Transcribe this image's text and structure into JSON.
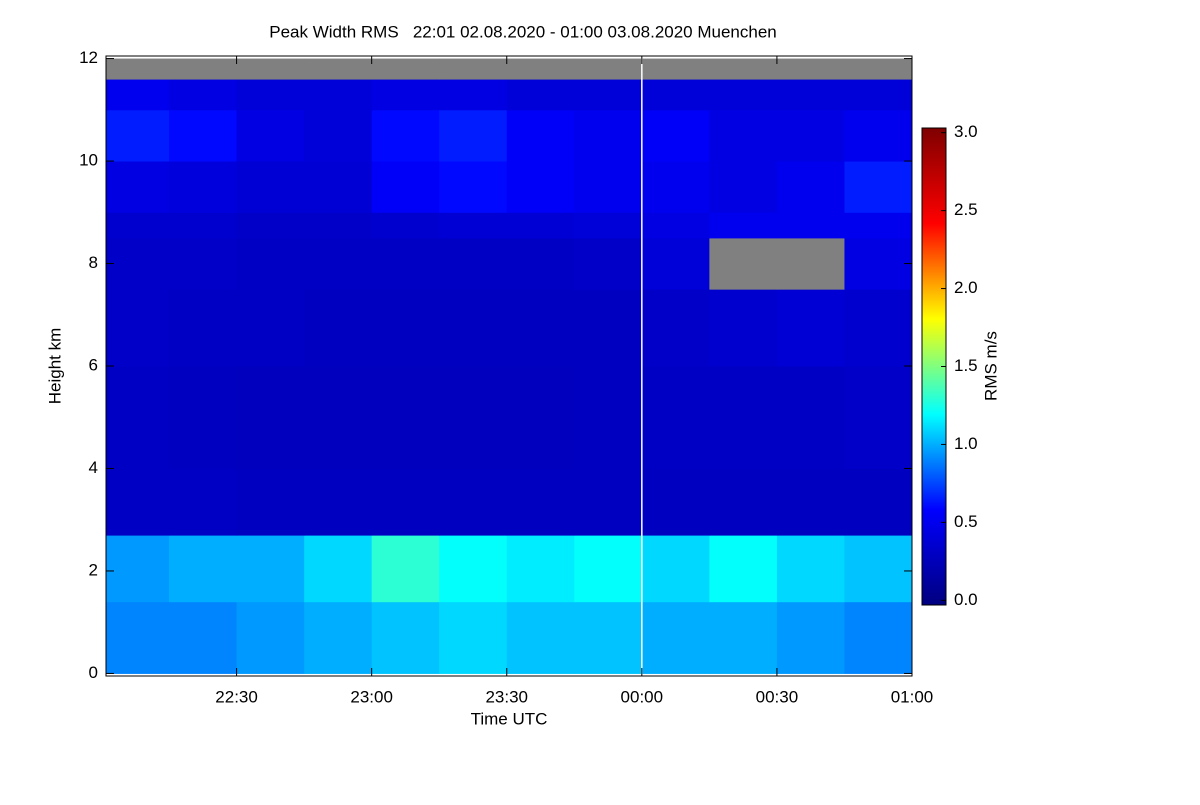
{
  "chart_data": {
    "type": "heatmap",
    "title": "Peak Width RMS   22:01 02.08.2020 - 01:00 03.08.2020 Muenchen",
    "x_label": "Time UTC",
    "y_label": "Height km",
    "colorbar_label": "RMS m/s",
    "x_edges": [
      1,
      15,
      30,
      45,
      60,
      75,
      90,
      105,
      120,
      135,
      150,
      165,
      180
    ],
    "y_edges": [
      0,
      1.4,
      2.7,
      4,
      6,
      7.5,
      8.5,
      9,
      10,
      11,
      11.6,
      12
    ],
    "z": [
      [
        0.9,
        0.9,
        0.95,
        1.0,
        1.05,
        1.1,
        1.05,
        1.05,
        1.0,
        1.0,
        0.95,
        0.9
      ],
      [
        0.95,
        1.0,
        1.0,
        1.1,
        1.3,
        1.2,
        1.15,
        1.2,
        1.1,
        1.2,
        1.1,
        1.05
      ],
      [
        0.3,
        0.3,
        0.28,
        0.28,
        0.28,
        0.28,
        0.28,
        0.28,
        0.28,
        0.28,
        0.28,
        0.28
      ],
      [
        0.3,
        0.28,
        0.27,
        0.27,
        0.27,
        0.27,
        0.27,
        0.28,
        0.3,
        0.3,
        0.3,
        0.32
      ],
      [
        0.32,
        0.3,
        0.3,
        0.28,
        0.28,
        0.28,
        0.28,
        0.28,
        0.32,
        0.35,
        0.38,
        0.35
      ],
      [
        0.32,
        0.32,
        0.3,
        0.3,
        0.3,
        0.3,
        0.3,
        0.32,
        0.4,
        null,
        null,
        0.45
      ],
      [
        0.35,
        0.35,
        0.32,
        0.32,
        0.35,
        0.38,
        0.38,
        0.4,
        0.45,
        0.5,
        0.5,
        0.5
      ],
      [
        0.45,
        0.42,
        0.38,
        0.38,
        0.55,
        0.6,
        0.55,
        0.5,
        0.5,
        0.45,
        0.5,
        0.65
      ],
      [
        0.65,
        0.6,
        0.45,
        0.4,
        0.6,
        0.65,
        0.55,
        0.5,
        0.55,
        0.45,
        0.45,
        0.5
      ],
      [
        0.5,
        0.45,
        0.4,
        0.4,
        0.45,
        0.45,
        0.4,
        0.4,
        0.4,
        0.4,
        0.4,
        0.4
      ],
      [
        null,
        null,
        null,
        null,
        null,
        null,
        null,
        null,
        null,
        null,
        null,
        null
      ]
    ],
    "xlim": [
      1,
      180
    ],
    "xticks": [
      {
        "value": 30,
        "label": "22:30"
      },
      {
        "value": 60,
        "label": "23:00"
      },
      {
        "value": 90,
        "label": "23:30"
      },
      {
        "value": 120,
        "label": "00:00"
      },
      {
        "value": 150,
        "label": "00:30"
      },
      {
        "value": 180,
        "label": "01:00"
      }
    ],
    "ylim": [
      -0.05,
      12.05
    ],
    "yticks": [
      0,
      2,
      4,
      6,
      8,
      10,
      12
    ],
    "clim": [
      -0.03,
      3.03
    ],
    "cticks": [
      {
        "value": 0,
        "label": "0.0"
      },
      0.5,
      {
        "value": 1,
        "label": "1.0"
      },
      1.5,
      {
        "value": 2,
        "label": "2.0"
      },
      2.5,
      {
        "value": 3,
        "label": "3.0"
      }
    ],
    "colormap": [
      "#00007f",
      "#0000ff",
      "#00ffff",
      "#ffff00",
      "#ff0000",
      "#7f0000"
    ],
    "missing_color": "#808080"
  }
}
